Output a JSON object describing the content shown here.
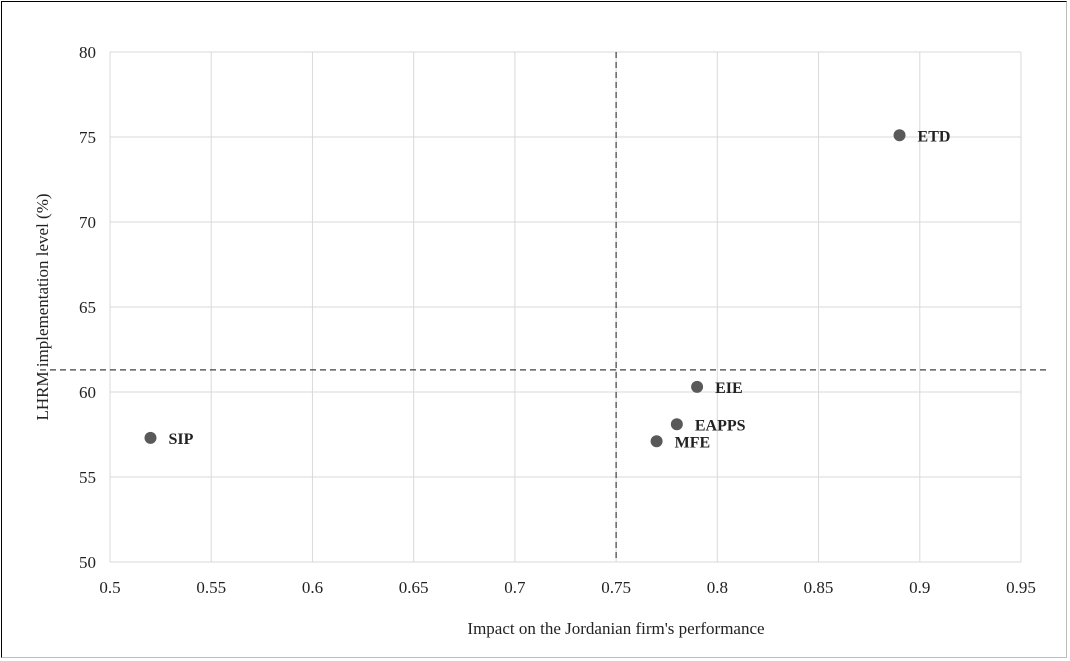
{
  "chart_data": {
    "type": "scatter",
    "title": "",
    "xlabel": "Impact on the Jordanian firm's performance",
    "ylabel": "LHRM implementation level (%)",
    "xlim": [
      0.5,
      0.95
    ],
    "ylim": [
      50,
      80
    ],
    "x_ticks": [
      "0.5",
      "0.55",
      "0.6",
      "0.65",
      "0.7",
      "0.75",
      "0.8",
      "0.85",
      "0.9",
      "0.95"
    ],
    "y_ticks": [
      "50",
      "55",
      "60",
      "65",
      "70",
      "75",
      "80"
    ],
    "grid": true,
    "reference_lines": {
      "x": 0.75,
      "y": 61.3,
      "style": "dashed"
    },
    "points": [
      {
        "label": "SIP",
        "x": 0.52,
        "y": 57.3
      },
      {
        "label": "MFE",
        "x": 0.77,
        "y": 57.1
      },
      {
        "label": "EAPPS",
        "x": 0.78,
        "y": 58.1
      },
      {
        "label": "EIE",
        "x": 0.79,
        "y": 60.3
      },
      {
        "label": "ETD",
        "x": 0.89,
        "y": 75.1
      }
    ],
    "colors": {
      "marker": "#595959",
      "grid": "#d9d9d9",
      "reference": "#404040"
    }
  }
}
